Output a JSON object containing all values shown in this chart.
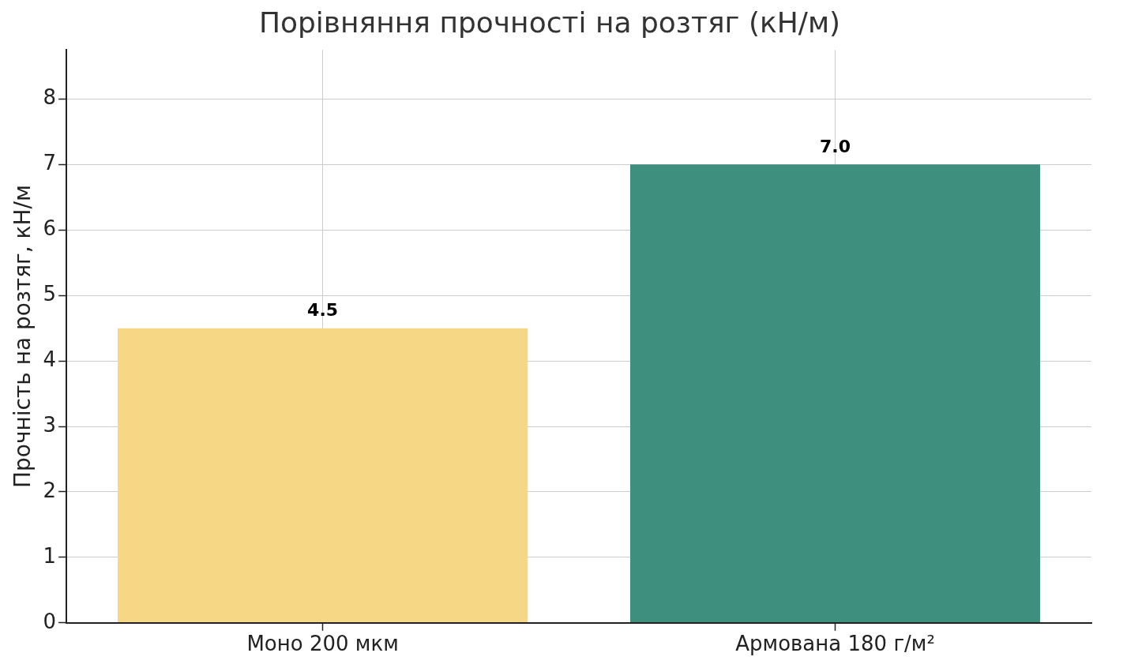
{
  "chart_data": {
    "type": "bar",
    "title": "Порівняння прочності на розтяг (кН/м)",
    "ylabel": "Прочність на розтяг, кН/м",
    "categories": [
      "Моно 200 мкм",
      "Армована 180 г/м²"
    ],
    "values": [
      4.5,
      7.0
    ],
    "colors": [
      "#f6d785",
      "#3f8f7f"
    ],
    "value_labels": [
      "4.5",
      "7.0"
    ],
    "ylim": [
      0,
      8.75
    ],
    "yticks": [
      0,
      1,
      2,
      3,
      4,
      5,
      6,
      7,
      8
    ],
    "grid": true
  }
}
